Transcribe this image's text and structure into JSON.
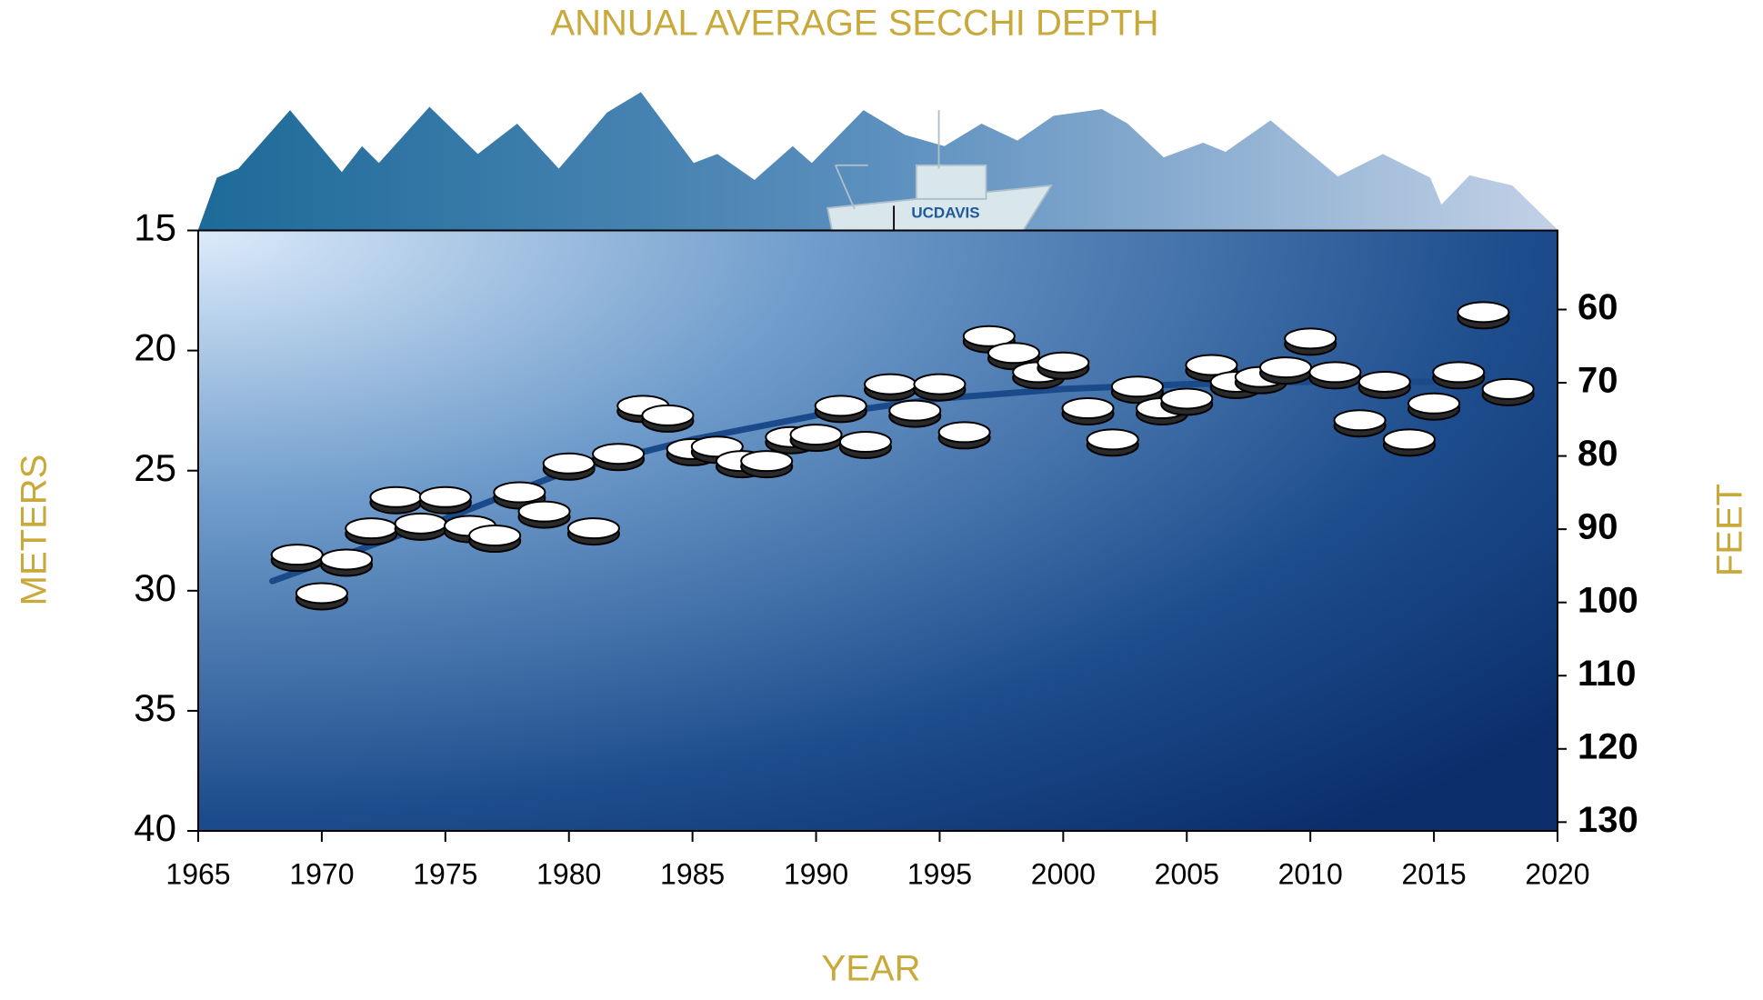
{
  "chart_data": {
    "type": "scatter",
    "title": "ANNUAL AVERAGE SECCHI DEPTH",
    "xlabel": "YEAR",
    "ylabel": "METERS",
    "y2label": "FEET",
    "annotations": [
      "UCDAVIS"
    ],
    "x": [
      1969,
      1970,
      1971,
      1972,
      1973,
      1974,
      1975,
      1976,
      1977,
      1978,
      1979,
      1980,
      1981,
      1982,
      1983,
      1984,
      1985,
      1986,
      1987,
      1988,
      1989,
      1990,
      1991,
      1992,
      1993,
      1994,
      1995,
      1996,
      1997,
      1998,
      1999,
      2000,
      2001,
      2002,
      2003,
      2004,
      2005,
      2006,
      2007,
      2008,
      2009,
      2010,
      2011,
      2012,
      2013,
      2014,
      2015,
      2016,
      2017,
      2018
    ],
    "values": [
      28.5,
      30.1,
      28.7,
      27.4,
      26.1,
      27.2,
      26.1,
      27.3,
      27.7,
      25.9,
      26.7,
      24.7,
      27.4,
      24.3,
      22.3,
      22.7,
      24.1,
      24.0,
      24.6,
      24.6,
      23.6,
      23.5,
      22.3,
      23.8,
      21.4,
      22.5,
      21.4,
      23.4,
      19.4,
      20.1,
      20.9,
      20.5,
      22.4,
      23.7,
      21.5,
      22.4,
      22.0,
      20.6,
      21.3,
      21.1,
      20.7,
      19.5,
      20.9,
      22.9,
      21.3,
      23.7,
      22.2,
      20.9,
      18.4,
      21.6
    ],
    "trend": {
      "color": "#1b4a8a",
      "x": [
        1968,
        1975,
        1980,
        1985,
        1990,
        1995,
        2000,
        2005,
        2010,
        2015
      ],
      "values": [
        29.6,
        27.0,
        25.0,
        23.7,
        22.7,
        22.0,
        21.6,
        21.4,
        21.3,
        21.3
      ]
    },
    "xlim": [
      1965,
      2020
    ],
    "xticks": [
      1965,
      1970,
      1975,
      1980,
      1985,
      1990,
      1995,
      2000,
      2005,
      2010,
      2015,
      2020
    ],
    "ylim": [
      15,
      40
    ],
    "y_reverse": true,
    "yticks": [
      15,
      20,
      25,
      30,
      35,
      40
    ],
    "y2lim": [
      49.2,
      131.2
    ],
    "y2ticks": [
      60,
      70,
      80,
      90,
      100,
      110,
      120,
      130
    ],
    "marker_color": "#ffffff",
    "label_color": "#c9a93a"
  }
}
